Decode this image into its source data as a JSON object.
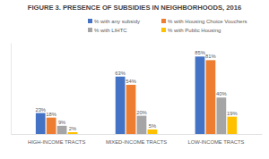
{
  "chart_data": {
    "type": "bar",
    "title": "FIGURE 3. PRESENCE OF SUBSIDIES IN NEIGHBORHOODS, 2016",
    "categories": [
      "HIGH-INCOME TRACTS",
      "MIXED-INCOME TRACTS",
      "LOW-INCOME TRACTS"
    ],
    "series": [
      {
        "name": "% with any subsidy",
        "color": "#4472c4",
        "values": [
          23,
          63,
          85
        ],
        "value_labels": [
          "23%",
          "63%",
          "85%"
        ]
      },
      {
        "name": "% with Housing Choice Vouchers",
        "color": "#ed7d31",
        "values": [
          18,
          54,
          81
        ],
        "value_labels": [
          "18%",
          "54%",
          "81%"
        ]
      },
      {
        "name": "% with LIHTC",
        "color": "#a5a5a5",
        "values": [
          9,
          20,
          40
        ],
        "value_labels": [
          "9%",
          "20%",
          "40%"
        ]
      },
      {
        "name": "% with Public Housing",
        "color": "#ffc000",
        "values": [
          2,
          5,
          19
        ],
        "value_labels": [
          "2%",
          "5%",
          "19%"
        ]
      }
    ],
    "ylim": [
      0,
      100
    ],
    "grid": false,
    "legend": "top",
    "data_labels": true,
    "tick_labels": "x"
  }
}
